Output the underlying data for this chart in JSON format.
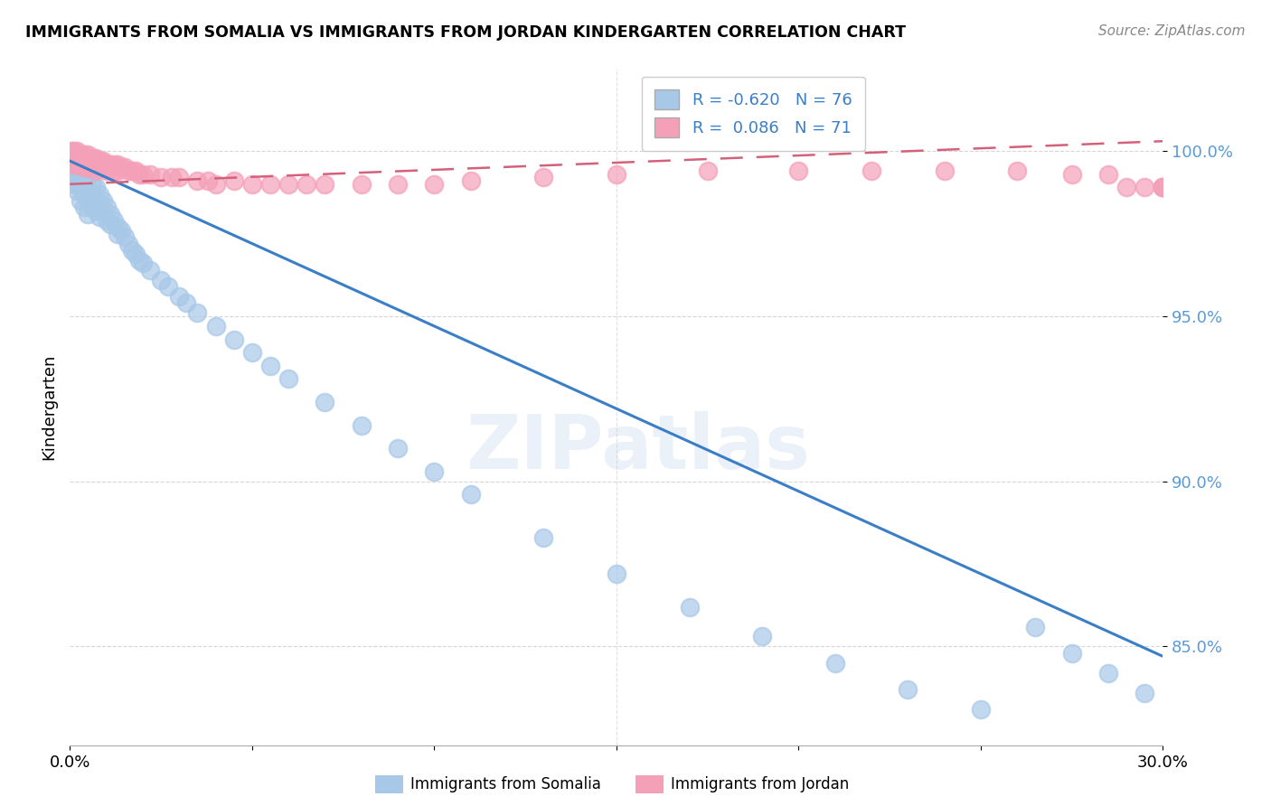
{
  "title": "IMMIGRANTS FROM SOMALIA VS IMMIGRANTS FROM JORDAN KINDERGARTEN CORRELATION CHART",
  "source": "Source: ZipAtlas.com",
  "ylabel": "Kindergarten",
  "legend_somalia": "Immigrants from Somalia",
  "legend_jordan": "Immigrants from Jordan",
  "R_somalia": -0.62,
  "N_somalia": 76,
  "R_jordan": 0.086,
  "N_jordan": 71,
  "color_somalia": "#A8C8E8",
  "color_jordan": "#F4A0B8",
  "trendline_somalia_color": "#3B7EC8",
  "trendline_jordan_color": "#D4607A",
  "background_color": "#FFFFFF",
  "watermark": "ZIPatlas",
  "xlim": [
    0.0,
    0.3
  ],
  "ylim": [
    0.82,
    1.025
  ],
  "somalia_x": [
    0.0005,
    0.001,
    0.001,
    0.001,
    0.0015,
    0.0015,
    0.002,
    0.002,
    0.002,
    0.0025,
    0.0025,
    0.003,
    0.003,
    0.003,
    0.003,
    0.0035,
    0.004,
    0.004,
    0.004,
    0.004,
    0.005,
    0.005,
    0.005,
    0.005,
    0.006,
    0.006,
    0.006,
    0.007,
    0.007,
    0.007,
    0.008,
    0.008,
    0.008,
    0.009,
    0.009,
    0.01,
    0.01,
    0.011,
    0.011,
    0.012,
    0.013,
    0.013,
    0.014,
    0.015,
    0.016,
    0.017,
    0.018,
    0.019,
    0.02,
    0.022,
    0.025,
    0.027,
    0.03,
    0.032,
    0.035,
    0.04,
    0.045,
    0.05,
    0.055,
    0.06,
    0.07,
    0.08,
    0.09,
    0.1,
    0.11,
    0.13,
    0.15,
    0.17,
    0.19,
    0.21,
    0.23,
    0.25,
    0.265,
    0.275,
    0.285,
    0.295
  ],
  "somalia_y": [
    0.995,
    0.998,
    0.993,
    0.99,
    0.997,
    0.991,
    0.996,
    0.992,
    0.988,
    0.994,
    0.99,
    0.996,
    0.992,
    0.989,
    0.985,
    0.993,
    0.994,
    0.99,
    0.987,
    0.983,
    0.992,
    0.988,
    0.985,
    0.981,
    0.99,
    0.987,
    0.983,
    0.989,
    0.985,
    0.982,
    0.987,
    0.984,
    0.98,
    0.985,
    0.982,
    0.983,
    0.979,
    0.981,
    0.978,
    0.979,
    0.977,
    0.975,
    0.976,
    0.974,
    0.972,
    0.97,
    0.969,
    0.967,
    0.966,
    0.964,
    0.961,
    0.959,
    0.956,
    0.954,
    0.951,
    0.947,
    0.943,
    0.939,
    0.935,
    0.931,
    0.924,
    0.917,
    0.91,
    0.903,
    0.896,
    0.883,
    0.872,
    0.862,
    0.853,
    0.845,
    0.837,
    0.831,
    0.856,
    0.848,
    0.842,
    0.836
  ],
  "jordan_x": [
    0.0005,
    0.001,
    0.001,
    0.001,
    0.0015,
    0.002,
    0.002,
    0.002,
    0.003,
    0.003,
    0.003,
    0.004,
    0.004,
    0.004,
    0.005,
    0.005,
    0.005,
    0.006,
    0.006,
    0.007,
    0.007,
    0.007,
    0.008,
    0.008,
    0.009,
    0.009,
    0.01,
    0.01,
    0.011,
    0.012,
    0.012,
    0.013,
    0.013,
    0.014,
    0.015,
    0.016,
    0.017,
    0.018,
    0.019,
    0.02,
    0.022,
    0.025,
    0.028,
    0.03,
    0.035,
    0.038,
    0.04,
    0.045,
    0.05,
    0.055,
    0.06,
    0.065,
    0.07,
    0.08,
    0.09,
    0.1,
    0.11,
    0.13,
    0.15,
    0.175,
    0.2,
    0.22,
    0.24,
    0.26,
    0.275,
    0.285,
    0.29,
    0.295,
    0.3,
    0.3,
    0.3
  ],
  "jordan_y": [
    1.0,
    1.0,
    0.998,
    0.996,
    0.999,
    1.0,
    0.998,
    0.996,
    0.999,
    0.998,
    0.996,
    0.999,
    0.997,
    0.995,
    0.999,
    0.997,
    0.995,
    0.998,
    0.996,
    0.998,
    0.996,
    0.994,
    0.997,
    0.995,
    0.997,
    0.995,
    0.996,
    0.994,
    0.996,
    0.996,
    0.994,
    0.996,
    0.994,
    0.995,
    0.995,
    0.994,
    0.994,
    0.994,
    0.993,
    0.993,
    0.993,
    0.992,
    0.992,
    0.992,
    0.991,
    0.991,
    0.99,
    0.991,
    0.99,
    0.99,
    0.99,
    0.99,
    0.99,
    0.99,
    0.99,
    0.99,
    0.991,
    0.992,
    0.993,
    0.994,
    0.994,
    0.994,
    0.994,
    0.994,
    0.993,
    0.993,
    0.989,
    0.989,
    0.989,
    0.989,
    0.989
  ]
}
